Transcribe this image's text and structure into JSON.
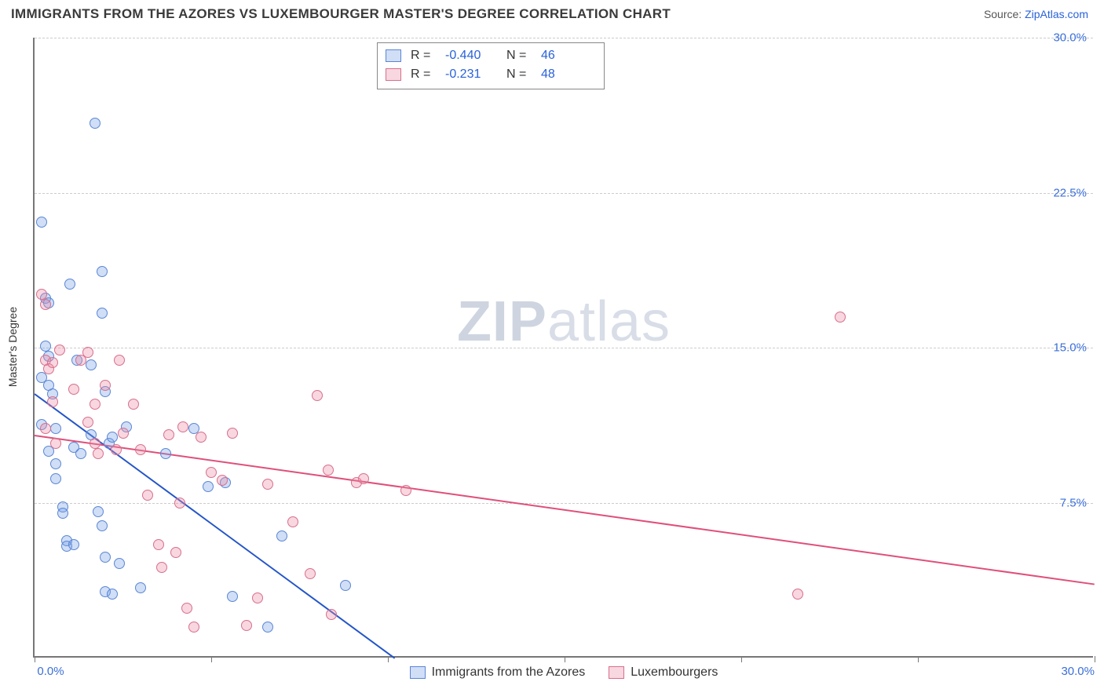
{
  "header": {
    "title": "IMMIGRANTS FROM THE AZORES VS LUXEMBOURGER MASTER'S DEGREE CORRELATION CHART",
    "source_prefix": "Source: ",
    "source_link": "ZipAtlas.com"
  },
  "watermark": {
    "bold": "ZIP",
    "light": "atlas"
  },
  "chart": {
    "type": "scatter",
    "ylabel": "Master's Degree",
    "xlim": [
      0,
      30
    ],
    "ylim": [
      0,
      30
    ],
    "x_ticks": [
      0,
      5,
      10,
      15,
      20,
      25,
      30
    ],
    "x_tick_labels": {
      "0": "0.0%",
      "30": "30.0%"
    },
    "y_ticks": [
      7.5,
      15.0,
      22.5,
      30.0
    ],
    "y_tick_labels": [
      "7.5%",
      "15.0%",
      "22.5%",
      "30.0%"
    ],
    "grid_color": "#cccccc",
    "axis_color": "#777777",
    "background_color": "#ffffff",
    "tick_label_color": "#3b6fd8",
    "label_color": "#333333",
    "marker_radius": 7,
    "marker_stroke_width": 1.3,
    "series": [
      {
        "key": "azores",
        "label": "Immigrants from the Azores",
        "fill": "rgba(120,160,230,0.35)",
        "stroke": "#5a86d6",
        "trend_color": "#2455c9",
        "R": "-0.440",
        "N": "46",
        "trend": {
          "x1": 0,
          "y1": 12.8,
          "x2": 10.2,
          "y2": 0
        },
        "points": [
          [
            0.2,
            21.0
          ],
          [
            0.3,
            17.3
          ],
          [
            0.4,
            17.1
          ],
          [
            1.9,
            18.6
          ],
          [
            1.0,
            18.0
          ],
          [
            1.9,
            16.6
          ],
          [
            0.3,
            15.0
          ],
          [
            0.4,
            14.5
          ],
          [
            0.4,
            13.1
          ],
          [
            0.5,
            12.7
          ],
          [
            0.2,
            11.2
          ],
          [
            0.6,
            11.0
          ],
          [
            1.2,
            14.3
          ],
          [
            1.6,
            14.1
          ],
          [
            2.0,
            12.8
          ],
          [
            1.1,
            10.1
          ],
          [
            0.4,
            9.9
          ],
          [
            0.6,
            9.3
          ],
          [
            0.6,
            8.6
          ],
          [
            1.3,
            9.8
          ],
          [
            1.6,
            10.7
          ],
          [
            2.1,
            10.3
          ],
          [
            2.2,
            10.6
          ],
          [
            2.6,
            11.1
          ],
          [
            4.5,
            11.0
          ],
          [
            0.8,
            7.2
          ],
          [
            0.8,
            6.9
          ],
          [
            0.9,
            5.6
          ],
          [
            0.9,
            5.3
          ],
          [
            1.1,
            5.4
          ],
          [
            1.8,
            7.0
          ],
          [
            1.9,
            6.3
          ],
          [
            2.0,
            4.8
          ],
          [
            2.0,
            3.1
          ],
          [
            2.2,
            3.0
          ],
          [
            2.4,
            4.5
          ],
          [
            3.0,
            3.3
          ],
          [
            4.9,
            8.2
          ],
          [
            5.4,
            8.4
          ],
          [
            5.6,
            2.9
          ],
          [
            6.6,
            1.4
          ],
          [
            7.0,
            5.8
          ],
          [
            8.8,
            3.4
          ],
          [
            1.7,
            25.8
          ],
          [
            0.2,
            13.5
          ],
          [
            3.7,
            9.8
          ]
        ]
      },
      {
        "key": "lux",
        "label": "Luxembourgers",
        "fill": "rgba(235,140,165,0.35)",
        "stroke": "#d86f8c",
        "trend_color": "#e04f7a",
        "R": "-0.231",
        "N": "48",
        "trend": {
          "x1": 0,
          "y1": 10.8,
          "x2": 30,
          "y2": 3.6
        },
        "points": [
          [
            0.2,
            17.5
          ],
          [
            0.3,
            17.0
          ],
          [
            0.3,
            14.3
          ],
          [
            0.4,
            13.9
          ],
          [
            0.5,
            14.2
          ],
          [
            0.5,
            12.3
          ],
          [
            0.6,
            10.3
          ],
          [
            0.7,
            14.8
          ],
          [
            1.1,
            12.9
          ],
          [
            1.3,
            14.3
          ],
          [
            1.5,
            14.7
          ],
          [
            1.5,
            11.3
          ],
          [
            1.7,
            12.2
          ],
          [
            1.7,
            10.3
          ],
          [
            1.8,
            9.8
          ],
          [
            2.0,
            13.1
          ],
          [
            2.3,
            10.0
          ],
          [
            2.4,
            14.3
          ],
          [
            2.5,
            10.8
          ],
          [
            2.8,
            12.2
          ],
          [
            3.0,
            10.0
          ],
          [
            3.2,
            7.8
          ],
          [
            3.5,
            5.4
          ],
          [
            3.6,
            4.3
          ],
          [
            3.8,
            10.7
          ],
          [
            4.0,
            5.0
          ],
          [
            4.1,
            7.4
          ],
          [
            4.2,
            11.1
          ],
          [
            4.3,
            2.3
          ],
          [
            4.5,
            1.4
          ],
          [
            4.7,
            10.6
          ],
          [
            5.0,
            8.9
          ],
          [
            5.3,
            8.5
          ],
          [
            5.6,
            10.8
          ],
          [
            6.0,
            1.5
          ],
          [
            6.3,
            2.8
          ],
          [
            6.6,
            8.3
          ],
          [
            7.3,
            6.5
          ],
          [
            7.8,
            4.0
          ],
          [
            8.0,
            12.6
          ],
          [
            8.3,
            9.0
          ],
          [
            8.4,
            2.0
          ],
          [
            9.1,
            8.4
          ],
          [
            9.3,
            8.6
          ],
          [
            10.5,
            8.0
          ],
          [
            21.6,
            3.0
          ],
          [
            22.8,
            16.4
          ],
          [
            0.3,
            11.0
          ]
        ]
      }
    ]
  },
  "legend_top": {
    "r_label": "R =",
    "n_label": "N ="
  },
  "legend_bottom": {}
}
